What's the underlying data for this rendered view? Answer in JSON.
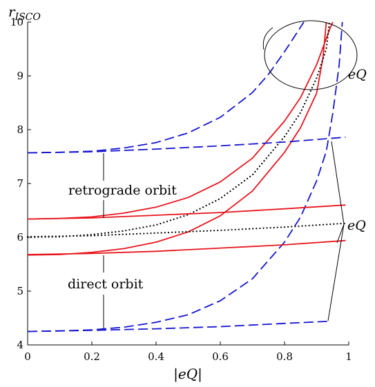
{
  "chart_data": {
    "type": "line",
    "xlabel": "|eQ|",
    "ylabel": "r_ISCO",
    "ylabel_main": "r",
    "ylabel_sub": "ISCO",
    "xlim": [
      0,
      1
    ],
    "ylim": [
      4,
      10
    ],
    "xticks": [
      0,
      0.2,
      0.4,
      0.6,
      0.8,
      1
    ],
    "xtick_labels": [
      "0",
      "0.2",
      "0.4",
      "0.6",
      "0.8",
      "1"
    ],
    "yticks": [
      4,
      5,
      6,
      7,
      8,
      9,
      10
    ],
    "ytick_labels": [
      "4",
      "5",
      "6",
      "7",
      "8",
      "9",
      "10"
    ],
    "grid": false,
    "annotations": {
      "retrograde": "retrograde orbit",
      "direct": "direct orbit",
      "eq_top": "eQ",
      "eq_mid": "eQ"
    },
    "series": [
      {
        "style": "red-solid",
        "color": "#e8141c",
        "x": [
          0,
          0.1,
          0.2,
          0.3,
          0.4,
          0.5,
          0.6,
          0.7,
          0.8,
          0.85,
          0.9,
          0.92,
          0.94,
          0.95
        ],
        "y": [
          6.34,
          6.35,
          6.38,
          6.45,
          6.56,
          6.74,
          7.03,
          7.47,
          8.16,
          8.6,
          9.21,
          9.53,
          9.86,
          10
        ]
      },
      {
        "style": "red-solid",
        "color": "#e8141c",
        "x": [
          0,
          0.1,
          0.2,
          0.3,
          0.4,
          0.5,
          0.6,
          0.7,
          0.8,
          0.85,
          0.9,
          0.92,
          0.93
        ],
        "y": [
          5.67,
          5.68,
          5.72,
          5.79,
          5.91,
          6.1,
          6.4,
          6.86,
          7.58,
          8.04,
          8.68,
          9.35,
          10
        ]
      },
      {
        "style": "black-dotted",
        "color": "#000000",
        "x": [
          0,
          0.1,
          0.2,
          0.3,
          0.4,
          0.5,
          0.6,
          0.7,
          0.8,
          0.85,
          0.9,
          0.93,
          0.94
        ],
        "y": [
          6.0,
          6.01,
          6.05,
          6.12,
          6.23,
          6.42,
          6.72,
          7.16,
          7.87,
          8.32,
          8.96,
          9.5,
          10
        ]
      },
      {
        "style": "blue-dashed",
        "color": "#1414d0",
        "x": [
          0,
          0.1,
          0.2,
          0.3,
          0.4,
          0.5,
          0.6,
          0.7,
          0.75,
          0.8,
          0.83,
          0.86
        ],
        "y": [
          7.57,
          7.58,
          7.6,
          7.66,
          7.76,
          7.94,
          8.23,
          8.69,
          9.03,
          9.45,
          9.72,
          10
        ]
      },
      {
        "style": "blue-dashed",
        "color": "#1414d0",
        "x": [
          0,
          0.1,
          0.2,
          0.3,
          0.4,
          0.5,
          0.6,
          0.7,
          0.8,
          0.85,
          0.9,
          0.93,
          0.95,
          0.97,
          0.98
        ],
        "y": [
          4.25,
          4.26,
          4.28,
          4.33,
          4.42,
          4.56,
          4.82,
          5.23,
          5.91,
          6.38,
          7.05,
          7.6,
          8.3,
          9.2,
          10
        ]
      },
      {
        "style": "red-solid",
        "color": "#e8141c",
        "x": [
          0,
          0.2,
          0.4,
          0.6,
          0.8,
          0.99
        ],
        "y": [
          6.34,
          6.36,
          6.41,
          6.46,
          6.53,
          6.6
        ]
      },
      {
        "style": "red-solid",
        "color": "#e8141c",
        "x": [
          0,
          0.2,
          0.4,
          0.6,
          0.8,
          0.99
        ],
        "y": [
          5.68,
          5.7,
          5.74,
          5.8,
          5.86,
          5.94
        ]
      },
      {
        "style": "black-dotted",
        "color": "#000000",
        "x": [
          0,
          0.2,
          0.4,
          0.6,
          0.8,
          0.99
        ],
        "y": [
          6.01,
          6.03,
          6.08,
          6.13,
          6.19,
          6.26
        ]
      },
      {
        "style": "blue-dashed",
        "color": "#1414d0",
        "x": [
          0,
          0.2,
          0.4,
          0.6,
          0.8,
          0.99
        ],
        "y": [
          7.57,
          7.59,
          7.64,
          7.7,
          7.77,
          7.86
        ]
      },
      {
        "style": "blue-dashed",
        "color": "#1414d0",
        "x": [
          0,
          0.2,
          0.4,
          0.6,
          0.8,
          0.94
        ],
        "y": [
          4.25,
          4.27,
          4.3,
          4.34,
          4.4,
          4.44
        ]
      }
    ]
  }
}
